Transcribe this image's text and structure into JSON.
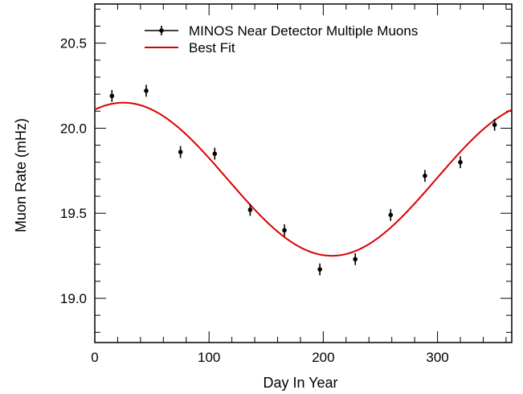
{
  "chart_data": {
    "type": "scatter",
    "title": "",
    "xlabel": "Day In Year",
    "ylabel": "Muon Rate (mHz)",
    "xlim": [
      0,
      365
    ],
    "ylim": [
      18.74,
      20.73
    ],
    "xticks": [
      0,
      100,
      200,
      300
    ],
    "yticks": [
      19.0,
      19.5,
      20.0,
      20.5
    ],
    "ytick_labels": [
      "19.0",
      "19.5",
      "20.0",
      "20.5"
    ],
    "grid": false,
    "legend_position": "top-center",
    "series": [
      {
        "name": "MINOS Near Detector Multiple Muons",
        "kind": "points-with-errorbars",
        "color": "#000000",
        "x": [
          15,
          45,
          75,
          105,
          136,
          166,
          197,
          228,
          259,
          289,
          320,
          350
        ],
        "y": [
          20.19,
          20.22,
          19.86,
          19.85,
          19.52,
          19.4,
          19.17,
          19.23,
          19.49,
          19.72,
          19.8,
          20.02
        ],
        "yerr": [
          0.035,
          0.035,
          0.035,
          0.035,
          0.035,
          0.035,
          0.035,
          0.035,
          0.035,
          0.035,
          0.035,
          0.035
        ]
      },
      {
        "name": "Best Fit",
        "kind": "curve",
        "color": "#dd0000",
        "model": "cosine",
        "mean": 19.7,
        "amplitude": 0.45,
        "phase_day": 25,
        "period_days": 365
      }
    ]
  }
}
